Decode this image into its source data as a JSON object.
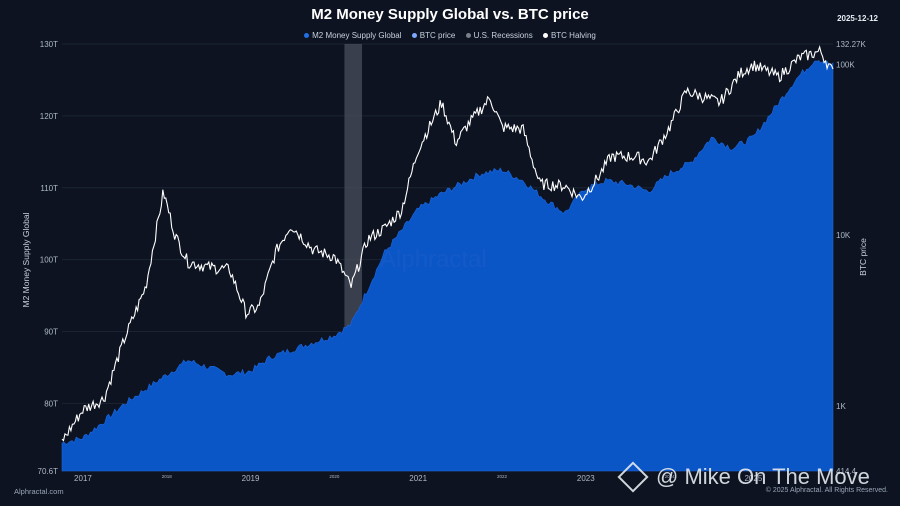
{
  "header": {
    "title": "M2 Money Supply Global vs. BTC price",
    "date": "2025-12-12"
  },
  "legend": [
    {
      "label": "M2 Money Supply Global",
      "color": "#1f6fe5"
    },
    {
      "label": "BTC price",
      "color": "#7fa8ff"
    },
    {
      "label": "U.S. Recessions",
      "color": "#7a7f8a"
    },
    {
      "label": "BTC Halving",
      "color": "#ffffff"
    }
  ],
  "footer": {
    "left": "Alphractal.com",
    "right": "© 2025 Alphractal. All Rights Reserved."
  },
  "watermarks": {
    "alphractal": "Alphractal",
    "creator": "@ Mike On The Move"
  },
  "colors": {
    "background": "#0d1320",
    "m2_fill": "#0b56c7",
    "btc_line": "#ffffff",
    "recession": "#4a4f5c"
  },
  "chart_data": {
    "type": "area",
    "title": "M2 Money Supply Global vs. BTC price",
    "ylabel_left": "M2 Money Supply Global",
    "ylabel_right": "BTC price",
    "x_range": [
      "2016-10",
      "2025-12"
    ],
    "x_ticks": [
      {
        "label": "2017",
        "x": 2017.0,
        "major": true
      },
      {
        "label": "2018",
        "x": 2018.0,
        "major": false
      },
      {
        "label": "2019",
        "x": 2019.0,
        "major": true
      },
      {
        "label": "2020",
        "x": 2020.0,
        "major": false
      },
      {
        "label": "2021",
        "x": 2021.0,
        "major": true
      },
      {
        "label": "2022",
        "x": 2022.0,
        "major": false
      },
      {
        "label": "2023",
        "x": 2023.0,
        "major": true
      },
      {
        "label": "2024",
        "x": 2024.0,
        "major": false
      },
      {
        "label": "2025",
        "x": 2025.0,
        "major": true
      }
    ],
    "y_left": {
      "min": 70.6,
      "max": 130,
      "ticks": [
        {
          "label": "70.6T",
          "v": 70.6
        },
        {
          "label": "80T",
          "v": 80
        },
        {
          "label": "90T",
          "v": 90
        },
        {
          "label": "100T",
          "v": 100
        },
        {
          "label": "110T",
          "v": 110
        },
        {
          "label": "120T",
          "v": 120
        },
        {
          "label": "130T",
          "v": 130
        }
      ]
    },
    "y_right": {
      "scale": "log",
      "min": 414.4,
      "max": 132270,
      "ticks": [
        {
          "label": "414.4",
          "v": 414.4
        },
        {
          "label": "1K",
          "v": 1000
        },
        {
          "label": "10K",
          "v": 10000
        },
        {
          "label": "100K",
          "v": 100000
        },
        {
          "label": "132.27K",
          "v": 132270
        }
      ]
    },
    "recessions": [
      {
        "start": 2020.12,
        "end": 2020.33
      }
    ],
    "series": [
      {
        "name": "M2 Money Supply Global",
        "axis": "left",
        "points": [
          [
            2016.75,
            74.5
          ],
          [
            2017.0,
            75.2
          ],
          [
            2017.25,
            77.5
          ],
          [
            2017.5,
            80.0
          ],
          [
            2017.75,
            82.0
          ],
          [
            2018.0,
            84.0
          ],
          [
            2018.25,
            86.0
          ],
          [
            2018.5,
            85.0
          ],
          [
            2018.75,
            84.0
          ],
          [
            2019.0,
            84.5
          ],
          [
            2019.25,
            86.5
          ],
          [
            2019.5,
            87.5
          ],
          [
            2019.75,
            88.5
          ],
          [
            2020.0,
            89.5
          ],
          [
            2020.2,
            91.0
          ],
          [
            2020.4,
            96.0
          ],
          [
            2020.6,
            101.0
          ],
          [
            2020.8,
            104.0
          ],
          [
            2021.0,
            107.0
          ],
          [
            2021.25,
            109.0
          ],
          [
            2021.5,
            110.5
          ],
          [
            2021.75,
            112.0
          ],
          [
            2022.0,
            112.5
          ],
          [
            2022.25,
            111.0
          ],
          [
            2022.5,
            108.5
          ],
          [
            2022.75,
            106.5
          ],
          [
            2023.0,
            110.0
          ],
          [
            2023.25,
            111.0
          ],
          [
            2023.5,
            110.5
          ],
          [
            2023.75,
            109.5
          ],
          [
            2024.0,
            112.0
          ],
          [
            2024.25,
            113.5
          ],
          [
            2024.5,
            117.0
          ],
          [
            2024.75,
            115.5
          ],
          [
            2025.0,
            117.0
          ],
          [
            2025.25,
            121.0
          ],
          [
            2025.5,
            125.0
          ],
          [
            2025.75,
            128.0
          ],
          [
            2025.95,
            127.0
          ]
        ]
      },
      {
        "name": "BTC price",
        "axis": "right",
        "points": [
          [
            2016.75,
            620
          ],
          [
            2017.0,
            950
          ],
          [
            2017.25,
            1100
          ],
          [
            2017.5,
            2500
          ],
          [
            2017.75,
            5000
          ],
          [
            2017.96,
            18000
          ],
          [
            2018.1,
            10000
          ],
          [
            2018.25,
            7000
          ],
          [
            2018.5,
            6500
          ],
          [
            2018.75,
            6300
          ],
          [
            2018.95,
            3500
          ],
          [
            2019.1,
            3800
          ],
          [
            2019.3,
            8000
          ],
          [
            2019.48,
            11500
          ],
          [
            2019.75,
            8200
          ],
          [
            2020.0,
            7500
          ],
          [
            2020.2,
            5000
          ],
          [
            2020.4,
            9500
          ],
          [
            2020.6,
            11000
          ],
          [
            2020.8,
            14000
          ],
          [
            2021.0,
            32000
          ],
          [
            2021.28,
            60000
          ],
          [
            2021.45,
            35000
          ],
          [
            2021.6,
            45000
          ],
          [
            2021.86,
            64000
          ],
          [
            2022.0,
            43000
          ],
          [
            2022.25,
            42000
          ],
          [
            2022.45,
            20000
          ],
          [
            2022.75,
            19500
          ],
          [
            2022.95,
            16500
          ],
          [
            2023.15,
            22000
          ],
          [
            2023.3,
            29000
          ],
          [
            2023.6,
            29000
          ],
          [
            2023.75,
            27000
          ],
          [
            2024.0,
            43000
          ],
          [
            2024.2,
            70000
          ],
          [
            2024.6,
            60000
          ],
          [
            2024.85,
            90000
          ],
          [
            2025.0,
            100000
          ],
          [
            2025.3,
            85000
          ],
          [
            2025.55,
            110000
          ],
          [
            2025.8,
            120000
          ],
          [
            2025.95,
            90000
          ]
        ]
      }
    ]
  }
}
